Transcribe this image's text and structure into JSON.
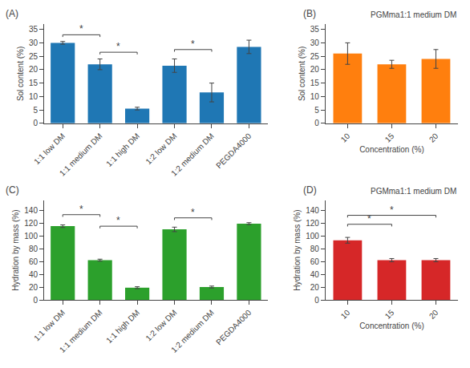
{
  "chart_data": [
    {
      "type": "bar",
      "categories": [
        "1:1 low DM",
        "1:1 medium DM",
        "1:1 high DM",
        "1:2 low DM",
        "1:2 medium DM",
        "PEGDA4000"
      ],
      "values": [
        30.0,
        22.0,
        5.5,
        21.5,
        11.5,
        28.5
      ],
      "errors": [
        0.5,
        2.0,
        0.5,
        2.5,
        3.5,
        2.5
      ],
      "ylabel": "Sol content (%)",
      "ylim": [
        0,
        37
      ],
      "yticks": [
        0,
        5,
        10,
        15,
        20,
        25,
        30,
        35
      ],
      "grid": false,
      "annotations": [
        {
          "text": "(A)"
        },
        {
          "text": "*",
          "from": "1:1 low DM",
          "to": "1:1 medium DM",
          "y": 33.0
        },
        {
          "text": "*",
          "from": "1:1 medium DM",
          "to": "1:1 high DM",
          "y": 26.5
        },
        {
          "text": "*",
          "from": "1:2 low DM",
          "to": "1:2 medium DM",
          "y": 27.5
        }
      ]
    },
    {
      "type": "bar",
      "title": "PGMma1:1 medium DM",
      "categories": [
        "10",
        "15",
        "20"
      ],
      "values": [
        26.0,
        22.0,
        24.0
      ],
      "errors": [
        4.0,
        1.5,
        3.5
      ],
      "ylabel": "Sol content (%)",
      "xlabel": "Concentration (%)",
      "ylim": [
        0,
        37
      ],
      "yticks": [
        0,
        5,
        10,
        15,
        20,
        25,
        30,
        35
      ],
      "grid": false,
      "annotations": [
        {
          "text": "(B)"
        }
      ]
    },
    {
      "type": "bar",
      "categories": [
        "1:1 low DM",
        "1:1 medium DM",
        "1:1 high DM",
        "1:2 low DM",
        "1:2 medium DM",
        "PEGDA4000"
      ],
      "values": [
        115.0,
        62.0,
        19.0,
        110.0,
        20.0,
        119.0
      ],
      "errors": [
        2.0,
        1.5,
        1.5,
        3.5,
        1.5,
        1.5
      ],
      "ylabel": "Hydration by mass (%)",
      "ylim": [
        0,
        155
      ],
      "yticks": [
        0,
        20,
        40,
        60,
        80,
        100,
        120,
        140
      ],
      "grid": false,
      "annotations": [
        {
          "text": "(C)"
        },
        {
          "text": "*",
          "from": "1:1 low DM",
          "to": "1:1 medium DM",
          "y": 133
        },
        {
          "text": "*",
          "from": "1:1 medium DM",
          "to": "1:1 high DM",
          "y": 115
        },
        {
          "text": "*",
          "from": "1:2 low DM",
          "to": "1:2 medium DM",
          "y": 128
        }
      ]
    },
    {
      "type": "bar",
      "title": "PGMma1:1 medium DM",
      "categories": [
        "10",
        "15",
        "20"
      ],
      "values": [
        93.0,
        62.0,
        62.0
      ],
      "errors": [
        4.5,
        2.5,
        2.5
      ],
      "ylabel": "Hydration by mass (%)",
      "xlabel": "Concentration (%)",
      "ylim": [
        0,
        155
      ],
      "yticks": [
        0,
        20,
        40,
        60,
        80,
        100,
        120,
        140
      ],
      "grid": false,
      "annotations": [
        {
          "text": "(D)"
        },
        {
          "text": "*",
          "from": "10",
          "to": "15",
          "y": 118
        },
        {
          "text": "*",
          "from": "10",
          "to": "20",
          "y": 132
        }
      ]
    }
  ]
}
